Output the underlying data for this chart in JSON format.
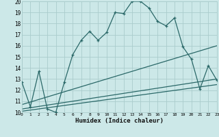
{
  "xlabel": "Humidex (Indice chaleur)",
  "bg_color": "#cce8e8",
  "grid_color": "#aacccc",
  "line_color": "#2a6868",
  "xlim": [
    0,
    23
  ],
  "ylim": [
    10,
    20
  ],
  "xticks": [
    0,
    1,
    2,
    3,
    4,
    5,
    6,
    7,
    8,
    9,
    10,
    11,
    12,
    13,
    14,
    15,
    16,
    17,
    18,
    19,
    20,
    21,
    22,
    23
  ],
  "yticks": [
    10,
    11,
    12,
    13,
    14,
    15,
    16,
    17,
    18,
    19,
    20
  ],
  "line1_x": [
    0,
    1,
    2,
    3,
    4,
    5,
    6,
    7,
    8,
    9,
    10,
    11,
    12,
    13,
    14,
    15,
    16,
    17,
    18,
    19,
    20,
    21,
    22,
    23
  ],
  "line1_y": [
    12.7,
    10.5,
    13.7,
    10.3,
    10.0,
    12.7,
    15.2,
    16.5,
    17.3,
    16.5,
    17.2,
    19.0,
    18.9,
    20.0,
    20.0,
    19.4,
    18.2,
    17.8,
    18.5,
    15.9,
    14.8,
    12.1,
    14.2,
    12.9
  ],
  "line2_x": [
    0,
    23
  ],
  "line2_y": [
    10.7,
    16.0
  ],
  "line3_x": [
    0,
    23
  ],
  "line3_y": [
    10.3,
    13.0
  ],
  "line4_x": [
    0,
    23
  ],
  "line4_y": [
    10.1,
    12.5
  ]
}
